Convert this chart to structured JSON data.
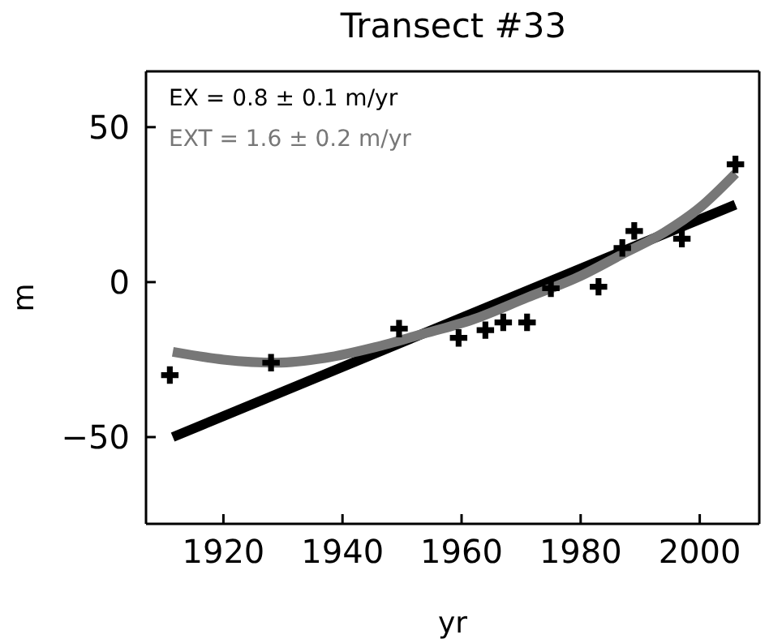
{
  "chart_data": {
    "type": "scatter",
    "title": "Transect #33",
    "xlabel": "yr",
    "ylabel": "m",
    "xlim": [
      1907,
      2010
    ],
    "ylim": [
      -78,
      68
    ],
    "xticks": [
      1920,
      1940,
      1960,
      1980,
      2000
    ],
    "yticks": [
      -50,
      0,
      50
    ],
    "annotations": [
      "EX = 0.8 ± 0.1 m/yr",
      "EXT = 1.6 ± 0.2 m/yr"
    ],
    "series": [
      {
        "type": "scatter",
        "color": "#000000",
        "marker": "cross",
        "x": [
          1911,
          1928,
          1949.5,
          1959.5,
          1964,
          1967,
          1971,
          1975,
          1983,
          1987,
          1989,
          1997,
          2006
        ],
        "values": [
          -30,
          -26,
          -15,
          -18,
          -15.5,
          -13,
          -13,
          -2,
          -1.5,
          11,
          16.5,
          14,
          38
        ]
      },
      {
        "type": "line",
        "color": "#000000",
        "marker": "none",
        "x": [
          1911.5,
          2006
        ],
        "values": [
          -50,
          25
        ]
      },
      {
        "type": "line",
        "color": "#777777",
        "marker": "none",
        "x": [
          1911.5,
          1920,
          1929,
          1937,
          1945.5,
          1953,
          1962,
          1971,
          1980,
          1987,
          1994,
          2000,
          2006
        ],
        "values": [
          -22.5,
          -25,
          -26,
          -24.5,
          -21,
          -17,
          -12,
          -5,
          2,
          9,
          16,
          24,
          35
        ]
      }
    ]
  }
}
